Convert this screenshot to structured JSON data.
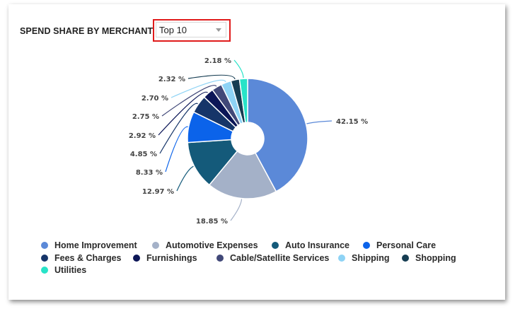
{
  "header": {
    "title": "SPEND SHARE BY MERCHANT"
  },
  "filter": {
    "selected": "Top 10"
  },
  "chart_data": {
    "type": "pie",
    "style": "donut",
    "title": "SPEND SHARE BY MERCHANT",
    "slices": [
      {
        "name": "Home Improvement",
        "value": 42.15,
        "label": "42.15 %",
        "color": "#5b89d8"
      },
      {
        "name": "Automotive Expenses",
        "value": 18.85,
        "label": "18.85 %",
        "color": "#a4b1c8"
      },
      {
        "name": "Auto Insurance",
        "value": 12.97,
        "label": "12.97 %",
        "color": "#145a7a"
      },
      {
        "name": "Personal Care",
        "value": 8.33,
        "label": "8.33 %",
        "color": "#0b63ea"
      },
      {
        "name": "Fees & Charges",
        "value": 4.85,
        "label": "4.85 %",
        "color": "#163569"
      },
      {
        "name": "Furnishings",
        "value": 2.92,
        "label": "2.92 %",
        "color": "#0c1657"
      },
      {
        "name": "Cable/Satellite Services",
        "value": 2.75,
        "label": "2.75 %",
        "color": "#414878"
      },
      {
        "name": "Shipping",
        "value": 2.7,
        "label": "2.70 %",
        "color": "#8ed3f5"
      },
      {
        "name": "Shopping",
        "value": 2.32,
        "label": "2.32 %",
        "color": "#163d52"
      },
      {
        "name": "Utilities",
        "value": 2.18,
        "label": "2.18 %",
        "color": "#27e3c8"
      }
    ],
    "legend": {
      "placement": "bottom"
    }
  }
}
